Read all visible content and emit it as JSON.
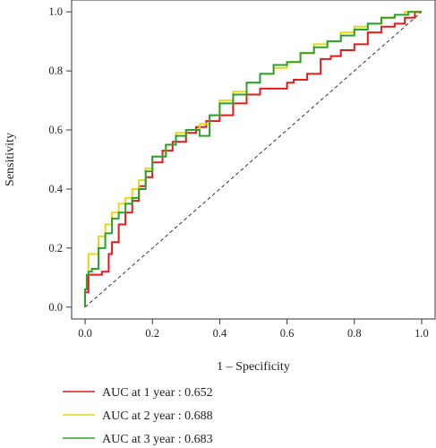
{
  "chart_data": {
    "type": "line",
    "title": "",
    "xlabel": "1 – Specificity",
    "ylabel": "Sensitivity",
    "xlim": [
      -0.04,
      1.04
    ],
    "ylim": [
      -0.04,
      1.04
    ],
    "x_ticks": [
      "0.0",
      "0.2",
      "0.4",
      "0.6",
      "0.8",
      "1.0"
    ],
    "y_ticks": [
      "0.0",
      "0.2",
      "0.4",
      "0.6",
      "0.8",
      "1.0"
    ],
    "grid": false,
    "legend_position": "bottom-left",
    "reference_line": {
      "x": [
        0,
        1
      ],
      "y": [
        0,
        1
      ],
      "style": "dashed",
      "color": "#333333"
    },
    "series": [
      {
        "name": "AUC at 1 year : 0.652",
        "color": "#e41a1c",
        "x": [
          0,
          0.01,
          0.01,
          0.05,
          0.07,
          0.08,
          0.1,
          0.12,
          0.14,
          0.16,
          0.18,
          0.2,
          0.23,
          0.26,
          0.3,
          0.33,
          0.36,
          0.4,
          0.44,
          0.48,
          0.52,
          0.56,
          0.6,
          0.62,
          0.66,
          0.7,
          0.73,
          0.76,
          0.8,
          0.84,
          0.88,
          0.92,
          0.95,
          0.98,
          1.0
        ],
        "y": [
          0,
          0.05,
          0.1,
          0.11,
          0.12,
          0.18,
          0.22,
          0.28,
          0.32,
          0.36,
          0.41,
          0.44,
          0.49,
          0.53,
          0.56,
          0.59,
          0.61,
          0.63,
          0.65,
          0.69,
          0.72,
          0.74,
          0.74,
          0.76,
          0.77,
          0.79,
          0.84,
          0.85,
          0.87,
          0.89,
          0.93,
          0.95,
          0.96,
          0.98,
          1.0
        ]
      },
      {
        "name": "AUC at 2 year : 0.688",
        "color": "#e6d817",
        "x": [
          0,
          0.005,
          0.01,
          0.04,
          0.06,
          0.08,
          0.1,
          0.12,
          0.14,
          0.16,
          0.18,
          0.2,
          0.24,
          0.27,
          0.3,
          0.34,
          0.37,
          0.4,
          0.44,
          0.48,
          0.52,
          0.56,
          0.6,
          0.64,
          0.68,
          0.72,
          0.76,
          0.8,
          0.84,
          0.88,
          0.92,
          0.95,
          0.98,
          1.0
        ],
        "y": [
          0,
          0.06,
          0.11,
          0.18,
          0.24,
          0.28,
          0.32,
          0.35,
          0.37,
          0.4,
          0.43,
          0.47,
          0.51,
          0.55,
          0.59,
          0.6,
          0.62,
          0.65,
          0.7,
          0.73,
          0.76,
          0.79,
          0.81,
          0.83,
          0.86,
          0.89,
          0.9,
          0.93,
          0.95,
          0.96,
          0.98,
          0.99,
          1.0,
          1.0
        ]
      },
      {
        "name": "AUC at 3 year : 0.683",
        "color": "#2ca02c",
        "x": [
          0,
          0.005,
          0.01,
          0.02,
          0.04,
          0.06,
          0.08,
          0.1,
          0.12,
          0.14,
          0.16,
          0.18,
          0.2,
          0.24,
          0.27,
          0.3,
          0.34,
          0.37,
          0.4,
          0.44,
          0.48,
          0.52,
          0.56,
          0.6,
          0.64,
          0.68,
          0.72,
          0.76,
          0.8,
          0.84,
          0.88,
          0.92,
          0.96,
          1.0
        ],
        "y": [
          0,
          0.06,
          0.11,
          0.12,
          0.13,
          0.2,
          0.25,
          0.3,
          0.32,
          0.35,
          0.37,
          0.4,
          0.46,
          0.51,
          0.55,
          0.58,
          0.6,
          0.58,
          0.65,
          0.69,
          0.72,
          0.76,
          0.79,
          0.82,
          0.83,
          0.86,
          0.88,
          0.9,
          0.92,
          0.94,
          0.96,
          0.98,
          0.99,
          1.0
        ]
      }
    ]
  }
}
